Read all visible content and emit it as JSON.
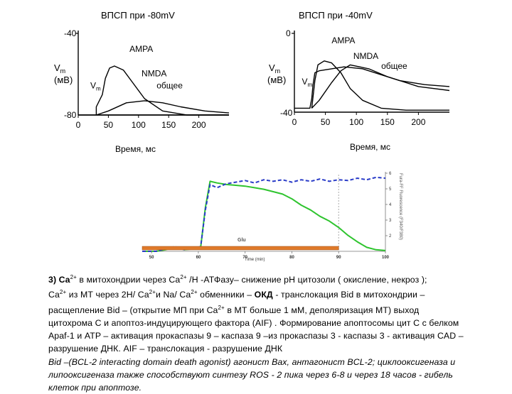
{
  "chart_data": [
    {
      "type": "line",
      "title": "ВПСП при -80mV",
      "xlabel": "Время, мс",
      "ylabel_line1": "V",
      "ylabel_sub": "m",
      "ylabel_line2": "(мВ)",
      "ylim": [
        -80,
        -40
      ],
      "xlim": [
        0,
        250
      ],
      "y_ticks": [
        "-40",
        "-80"
      ],
      "x_ticks": [
        0,
        50,
        100,
        150,
        200
      ],
      "annotations": [
        {
          "text": "AMPA",
          "x": 85,
          "y": -49
        },
        {
          "text": "NMDA",
          "x": 105,
          "y": -61
        },
        {
          "text": "общее",
          "x": 130,
          "y": -67
        },
        {
          "text": "V",
          "sub": "m",
          "x": 20,
          "y": -67
        }
      ],
      "series": [
        {
          "values": [
            [
              0,
              -80
            ],
            [
              30,
              -80
            ],
            [
              30,
              -76
            ],
            [
              40,
              -70
            ],
            [
              45,
              -62
            ],
            [
              52,
              -57
            ],
            [
              60,
              -56
            ],
            [
              75,
              -58
            ],
            [
              90,
              -64
            ],
            [
              110,
              -72
            ],
            [
              140,
              -78
            ],
            [
              180,
              -80
            ],
            [
              250,
              -80
            ]
          ]
        },
        {
          "values": [
            [
              30,
              -80
            ],
            [
              50,
              -78
            ],
            [
              80,
              -74
            ],
            [
              110,
              -73
            ],
            [
              140,
              -74
            ],
            [
              170,
              -76
            ],
            [
              210,
              -78
            ],
            [
              250,
              -79
            ]
          ]
        },
        {
          "values": [
            [
              30,
              -80
            ],
            [
              60,
              -80
            ],
            [
              110,
              -80
            ],
            [
              250,
              -80
            ]
          ]
        }
      ]
    },
    {
      "type": "line",
      "title": "ВПСП при -40mV",
      "xlabel": "Время, мс",
      "ylabel_line1": "V",
      "ylabel_sub": "m",
      "ylabel_line2": "(мВ)",
      "ylim": [
        -40,
        0
      ],
      "xlim": [
        0,
        250
      ],
      "y_ticks": [
        "0",
        "-40"
      ],
      "x_ticks": [
        0,
        50,
        100,
        150,
        200
      ],
      "annotations": [
        {
          "text": "AMPA",
          "x": 60,
          "y": -5
        },
        {
          "text": "NMDA",
          "x": 95,
          "y": -13
        },
        {
          "text": "общее",
          "x": 140,
          "y": -18
        },
        {
          "text": "V",
          "sub": "m",
          "x": 12,
          "y": -26
        }
      ],
      "series": [
        {
          "values": [
            [
              0,
              -38
            ],
            [
              25,
              -38
            ],
            [
              28,
              -33
            ],
            [
              30,
              -26
            ],
            [
              33,
              -20
            ],
            [
              40,
              -19
            ],
            [
              60,
              -18
            ],
            [
              80,
              -17
            ],
            [
              110,
              -18
            ],
            [
              140,
              -21
            ],
            [
              170,
              -24
            ],
            [
              210,
              -26
            ],
            [
              250,
              -27
            ]
          ]
        },
        {
          "values": [
            [
              28,
              -38
            ],
            [
              33,
              -24
            ],
            [
              38,
              -16
            ],
            [
              48,
              -14
            ],
            [
              60,
              -15
            ],
            [
              75,
              -20
            ],
            [
              90,
              -28
            ],
            [
              110,
              -34
            ],
            [
              140,
              -38
            ],
            [
              180,
              -39
            ],
            [
              250,
              -39
            ]
          ]
        },
        {
          "values": [
            [
              28,
              -38
            ],
            [
              40,
              -34
            ],
            [
              60,
              -25
            ],
            [
              75,
              -19
            ],
            [
              90,
              -16
            ],
            [
              120,
              -18
            ],
            [
              150,
              -22
            ],
            [
              200,
              -27
            ],
            [
              250,
              -29
            ]
          ]
        }
      ]
    },
    {
      "type": "line",
      "xlabel": "Time (min)",
      "ylabel_right": "Fura-FF Fluorescence (F340/F380)",
      "bar_label": "Glu",
      "xlim": [
        48,
        100
      ],
      "x_ticks": [
        50,
        60,
        70,
        80,
        90,
        100
      ],
      "y_right_ticks": [
        2,
        3,
        4,
        5,
        6
      ],
      "series": [
        {
          "color": "#2ec42e",
          "style": "solid",
          "values": [
            [
              48,
              0.0
            ],
            [
              51,
              0.0
            ],
            [
              53,
              0.02
            ],
            [
              55,
              0.05
            ],
            [
              57,
              0.02
            ],
            [
              59,
              0.03
            ],
            [
              60.5,
              0.05
            ],
            [
              61.5,
              0.55
            ],
            [
              62.5,
              0.88
            ],
            [
              64,
              0.86
            ],
            [
              66,
              0.84
            ],
            [
              68,
              0.83
            ],
            [
              70,
              0.82
            ],
            [
              72,
              0.8
            ],
            [
              74,
              0.78
            ],
            [
              76,
              0.75
            ],
            [
              78,
              0.72
            ],
            [
              80,
              0.66
            ],
            [
              82,
              0.58
            ],
            [
              84,
              0.52
            ],
            [
              86,
              0.44
            ],
            [
              88,
              0.38
            ],
            [
              90,
              0.3
            ],
            [
              92,
              0.2
            ],
            [
              94,
              0.12
            ],
            [
              96,
              0.05
            ],
            [
              98,
              0.02
            ],
            [
              100,
              0.01
            ]
          ]
        },
        {
          "color": "#2a3cc8",
          "style": "dashed",
          "values": [
            [
              48,
              0.0
            ],
            [
              51,
              0.0
            ],
            [
              53,
              0.03
            ],
            [
              55,
              0.06
            ],
            [
              57,
              0.02
            ],
            [
              59,
              0.04
            ],
            [
              60.5,
              0.06
            ],
            [
              61.5,
              0.52
            ],
            [
              62.5,
              0.84
            ],
            [
              64,
              0.8
            ],
            [
              66,
              0.85
            ],
            [
              68,
              0.87
            ],
            [
              70,
              0.89
            ],
            [
              72,
              0.86
            ],
            [
              74,
              0.9
            ],
            [
              76,
              0.88
            ],
            [
              78,
              0.9
            ],
            [
              80,
              0.87
            ],
            [
              82,
              0.9
            ],
            [
              84,
              0.88
            ],
            [
              86,
              0.91
            ],
            [
              88,
              0.88
            ],
            [
              90,
              0.9
            ],
            [
              92,
              0.89
            ],
            [
              94,
              0.92
            ],
            [
              96,
              0.9
            ],
            [
              98,
              0.93
            ],
            [
              100,
              0.92
            ]
          ]
        }
      ],
      "glu_bar": {
        "start": 48,
        "end": 90,
        "color": "#e07a2a"
      },
      "vline_x": 90
    }
  ],
  "caption": {
    "l1_a": "3) Ca",
    "l1_sup1": "2+",
    "l1_b": " в митохондрии через Ca",
    "l1_sup2": "2+",
    "l1_c": " /H -АТФазу– снижение pH цитозоли ( окисление, некроз );",
    "l2_a": "Ca",
    "l2_sup1": "2+",
    "l2_b": " из МТ через 2H/ Ca",
    "l2_sup2": "2+",
    "l2_c": "и  Na/ Ca",
    "l2_sup3": "2+",
    "l2_d": " обменники – ",
    "l2_bold": "ОКД",
    "l2_e": " -   транслокация Bid в  митохондрии –",
    "l3_a": "расщепление Bid – (открытие МП при    Ca",
    "l3_sup": "2+",
    "l3_b": "  в  МТ больше  1 мМ, деполяризация МТ) выход",
    "l4": "цитохрома С и апоптоз-индуцирующего фактора (AIF) .  Формирование апоптосомы цит С с белком",
    "l5": "Apaf-1 и ATP – активация прокаспазы 9 – каспаза 9  –из прокаспазы 3 - каспазы 3  - активация CAD –",
    "l6": "разрушение ДНК. AIF – транслокация - разрушение ДНК",
    "l7": "Bid –(BCL-2 interacting domain death agonist) агонист Bax, антагонист BCL-2; циклооксигеназа и",
    "l8": "липооксигеназа также способствуют  синтезу ROS  - 2 пика через 6-8 и через 18 часов - гибель",
    "l9": "клеток при апоптозе."
  }
}
